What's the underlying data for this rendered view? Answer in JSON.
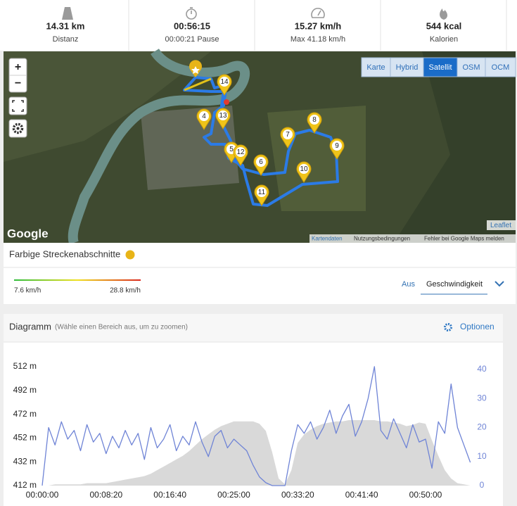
{
  "header": {
    "stats": [
      {
        "value": "14.31 km",
        "label": "Distanz"
      },
      {
        "value": "00:56:15",
        "label": "00:00:21 Pause"
      },
      {
        "value": "15.27 km/h",
        "label": "Max 41.18 km/h"
      },
      {
        "value": "544 kcal",
        "label": "Kalorien"
      }
    ]
  },
  "map": {
    "zoom_in": "+",
    "zoom_out": "−",
    "layers": [
      "Karte",
      "Hybrid",
      "Satellit",
      "OSM",
      "OCM"
    ],
    "active_layer": 2,
    "markers": [
      "4",
      "5",
      "6",
      "7",
      "8",
      "9",
      "10",
      "11",
      "12",
      "13",
      "14"
    ],
    "logo": "Google",
    "attribution": "Leaflet",
    "footer_links": [
      "Kartendaten",
      "Nutzungsbedingungen",
      "Fehler bei Google Maps melden"
    ]
  },
  "segments": {
    "title": "Farbige Streckenabschnitte",
    "min_label": "7.6 km/h",
    "max_label": "28.8 km/h",
    "off": "Aus",
    "mode": "Geschwindigkeit"
  },
  "chart_data": {
    "type": "line",
    "title": "Diagramm",
    "subtitle": "(Wähle einen Bereich aus, um zu zoomen)",
    "options": "Optionen",
    "x": [
      0,
      50,
      100,
      150,
      200,
      250,
      300,
      350,
      400,
      450,
      500,
      550,
      600,
      650,
      700,
      750,
      800,
      850,
      900,
      950,
      1000,
      1050,
      1100,
      1150,
      1200,
      1250,
      1300,
      1350,
      1400,
      1450,
      1500,
      1550,
      1600,
      1650,
      1700,
      1750,
      1800,
      1850,
      1900,
      1950,
      2000,
      2050,
      2100,
      2150,
      2200,
      2250,
      2300,
      2350,
      2400,
      2450,
      2500,
      2550,
      2600,
      2650,
      2700,
      2750,
      2800,
      2850,
      2900,
      2950,
      3000,
      3050,
      3100,
      3150,
      3200,
      3250,
      3300,
      3350
    ],
    "series": [
      {
        "type": "area",
        "color": "#d9d9d9",
        "values": [
          412,
          412,
          413,
          413,
          413,
          413,
          413,
          414,
          414,
          414,
          414,
          415,
          416,
          417,
          418,
          419,
          420,
          422,
          425,
          428,
          431,
          434,
          437,
          441,
          446,
          451,
          455,
          459,
          462,
          464,
          466,
          466,
          466,
          466,
          464,
          458,
          440,
          418,
          413,
          425,
          448,
          455,
          459,
          462,
          464,
          465,
          466,
          466,
          467,
          467,
          467,
          467,
          467,
          466,
          466,
          465,
          464,
          462,
          463,
          465,
          464,
          450,
          437,
          425,
          418,
          414,
          413,
          412
        ]
      },
      {
        "type": "line",
        "color": "#6f84d6",
        "axis": "y2",
        "values": [
          0,
          20,
          14,
          22,
          16,
          19,
          12,
          21,
          15,
          18,
          11,
          17,
          13,
          19,
          14,
          18,
          9,
          20,
          13,
          16,
          21,
          12,
          17,
          14,
          22,
          15,
          10,
          17,
          19,
          13,
          16,
          14,
          12,
          7,
          3,
          1,
          0,
          0,
          0,
          12,
          21,
          18,
          22,
          16,
          20,
          26,
          18,
          24,
          28,
          17,
          22,
          30,
          41,
          19,
          16,
          23,
          18,
          13,
          21,
          15,
          16,
          6,
          22,
          18,
          35,
          20,
          14,
          8
        ]
      }
    ],
    "xlim": [
      0,
      3550
    ],
    "xticks": [
      {
        "value": 0,
        "label": "00:00:00"
      },
      {
        "value": 500,
        "label": "00:08:20"
      },
      {
        "value": 1000,
        "label": "00:16:40"
      },
      {
        "value": 1500,
        "label": "00:25:00"
      },
      {
        "value": 2000,
        "label": "00:33:20"
      },
      {
        "value": 2500,
        "label": "00:41:40"
      },
      {
        "value": 3000,
        "label": "00:50:00"
      }
    ],
    "ylim": [
      412,
      512
    ],
    "yticks": [
      {
        "value": 412,
        "label": "412 m"
      },
      {
        "value": 432,
        "label": "432 m"
      },
      {
        "value": 452,
        "label": "452 m"
      },
      {
        "value": 472,
        "label": "472 m"
      },
      {
        "value": 492,
        "label": "492 m"
      },
      {
        "value": 512,
        "label": "512 m"
      }
    ],
    "y2lim": [
      0,
      40
    ],
    "y2ticks": [
      0,
      10,
      20,
      30,
      40
    ],
    "grid": false
  }
}
